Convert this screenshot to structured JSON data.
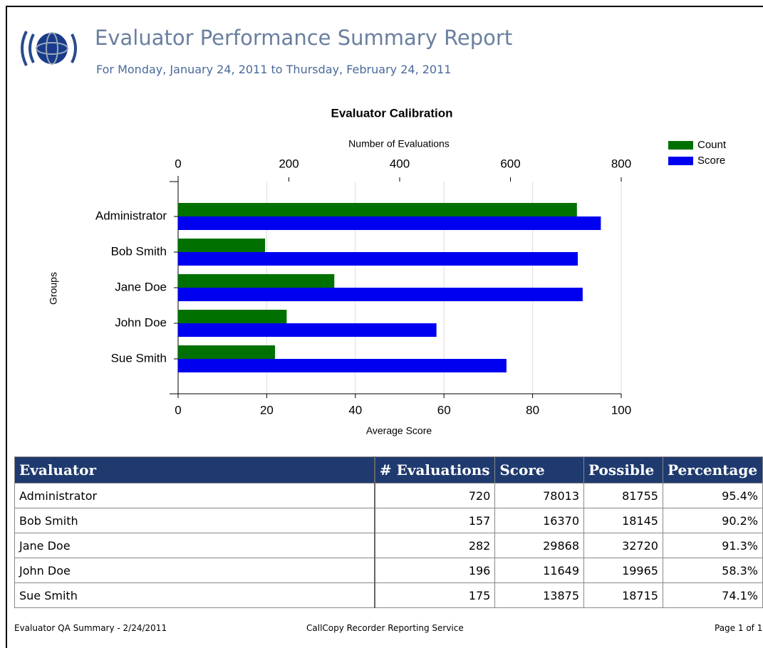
{
  "header": {
    "title": "Evaluator Performance Summary Report",
    "subtitle": "For Monday, January 24, 2011 to Thursday, February 24, 2011"
  },
  "chart_data": {
    "type": "bar",
    "orientation": "horizontal",
    "title": "Evaluator Calibration",
    "x_label": "Average Score",
    "x2_label": "Number of Evaluations",
    "y_label": "Groups",
    "categories": [
      "Administrator",
      "Bob Smith",
      "Jane Doe",
      "John Doe",
      "Sue Smith"
    ],
    "series": [
      {
        "name": "Count",
        "color": "#007000",
        "axis": "x2",
        "values": [
          720,
          157,
          282,
          196,
          175
        ]
      },
      {
        "name": "Score",
        "color": "#0000f0",
        "values": [
          95.4,
          90.2,
          91.3,
          58.3,
          74.1
        ]
      }
    ],
    "xlim": [
      0,
      100
    ],
    "xticks": [
      0,
      20,
      40,
      60,
      80,
      100
    ],
    "x2lim": [
      0,
      800
    ],
    "x2ticks": [
      0,
      200,
      400,
      600,
      800
    ],
    "grid": true,
    "legend": "upper right"
  },
  "table": {
    "columns": [
      "Evaluator",
      "# Evaluations",
      "Score",
      "Possible",
      "Percentage"
    ],
    "rows": [
      [
        "Administrator",
        "720",
        "78013",
        "81755",
        "95.4%"
      ],
      [
        "Bob Smith",
        "157",
        "16370",
        "18145",
        "90.2%"
      ],
      [
        "Jane Doe",
        "282",
        "29868",
        "32720",
        "91.3%"
      ],
      [
        "John Doe",
        "196",
        "11649",
        "19965",
        "58.3%"
      ],
      [
        "Sue Smith",
        "175",
        "13875",
        "18715",
        "74.1%"
      ]
    ]
  },
  "footer": {
    "left": "Evaluator QA Summary - 2/24/2011",
    "center": "CallCopy Recorder Reporting Service",
    "right": "Page 1 of 1"
  }
}
